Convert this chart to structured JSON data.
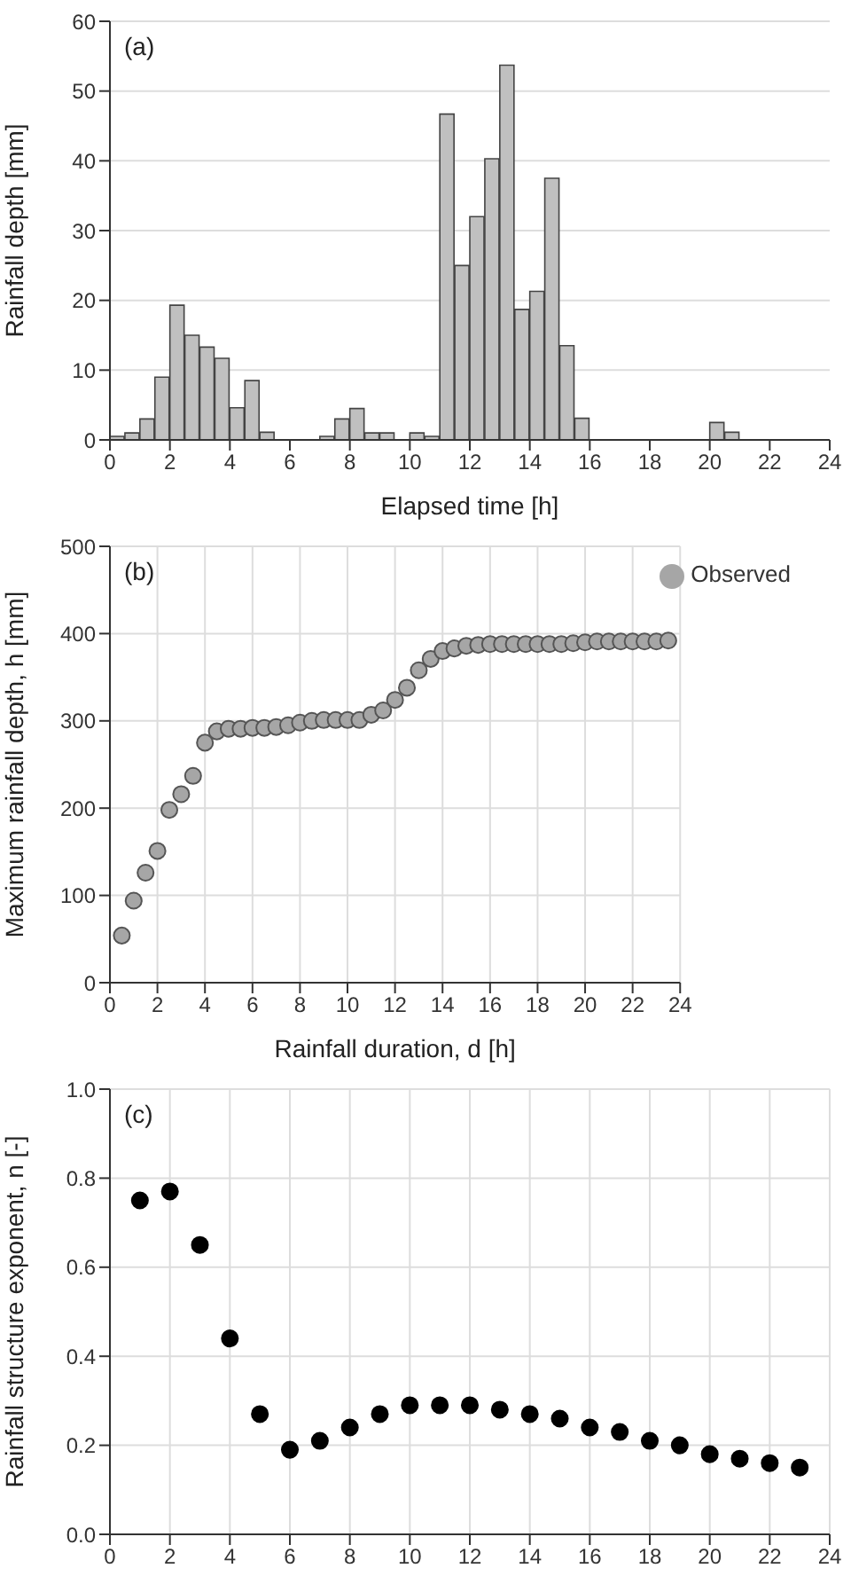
{
  "chart_data": [
    {
      "type": "histogram",
      "xlabel": "Elapsed time [h]",
      "ylabel": "Rainfall depth [mm]",
      "annotations": [
        "(a)"
      ],
      "bins": [
        0,
        0.5,
        1,
        1.5,
        2,
        2.5,
        3,
        3.5,
        4,
        4.5,
        5,
        5.5,
        6,
        6.5,
        7,
        7.5,
        8,
        8.5,
        9,
        9.5,
        10,
        10.5,
        11,
        11.5,
        12,
        12.5,
        13,
        13.5,
        14,
        14.5,
        15,
        15.5,
        16,
        16.5,
        17,
        17.5,
        18,
        18.5,
        19,
        19.5,
        20,
        20.5,
        21,
        21.5,
        22,
        22.5,
        23,
        23.5,
        24
      ],
      "values": [
        0.5,
        1,
        3,
        9,
        19.3,
        15,
        13.3,
        11.7,
        4.6,
        8.5,
        1.1,
        0,
        0,
        0,
        0.5,
        3,
        4.5,
        1,
        1,
        0,
        1,
        0.5,
        46.7,
        25,
        32,
        40.3,
        53.7,
        18.7,
        21.3,
        37.5,
        13.5,
        3.1,
        0,
        0,
        0,
        0,
        0,
        0,
        0,
        0,
        2.5,
        1.1,
        0,
        0,
        0,
        0,
        0,
        0
      ],
      "color": "#c0c0c0",
      "xlim": [
        0,
        24
      ],
      "xticks": [
        0,
        2,
        4,
        6,
        8,
        10,
        12,
        14,
        16,
        18,
        20,
        22,
        24
      ],
      "ylim": [
        0,
        60
      ],
      "yticks": [
        0,
        10,
        20,
        30,
        40,
        50,
        60
      ],
      "grid": "y"
    },
    {
      "type": "scatter",
      "xlabel": "Rainfall duration, d [h]",
      "ylabel": "Maximum  rainfall depth, h [mm]",
      "annotations": [
        "(b)"
      ],
      "x": [
        0.5,
        1,
        1.5,
        2,
        2.5,
        3,
        3.5,
        4,
        4.5,
        5,
        5.5,
        6,
        6.5,
        7,
        7.5,
        8,
        8.5,
        9,
        9.5,
        10,
        10.5,
        11,
        11.5,
        12,
        12.5,
        13,
        13.5,
        14,
        14.5,
        15,
        15.5,
        16,
        16.5,
        17,
        17.5,
        18,
        18.5,
        19,
        19.5,
        20,
        20.5,
        21,
        21.5,
        22,
        22.5,
        23,
        23.5
      ],
      "series": [
        {
          "name": "Observed",
          "color": "#a6a6a6",
          "values": [
            54,
            94,
            126,
            151,
            198,
            216,
            237,
            275,
            288,
            291,
            291,
            292,
            292,
            293,
            295,
            298,
            300,
            301,
            301,
            301,
            301,
            307,
            312,
            324,
            338,
            358,
            371,
            380,
            383,
            386,
            387,
            388,
            388,
            388,
            388,
            388,
            388,
            388,
            389,
            390,
            391,
            391,
            391,
            391,
            391,
            391,
            392
          ]
        }
      ],
      "xlim": [
        0,
        24
      ],
      "xticks": [
        0,
        2,
        4,
        6,
        8,
        10,
        12,
        14,
        16,
        18,
        20,
        22,
        24
      ],
      "ylim": [
        0,
        500
      ],
      "yticks": [
        0,
        100,
        200,
        300,
        400,
        500
      ],
      "grid": true,
      "legend": "top right",
      "marker": "circle"
    },
    {
      "type": "scatter",
      "ylabel": "Rainfall structure exponent, n [-]",
      "annotations": [
        "(c)"
      ],
      "x": [
        1,
        2,
        3,
        4,
        5,
        6,
        7,
        8,
        9,
        10,
        11,
        12,
        13,
        14,
        15,
        16,
        17,
        18,
        19,
        20,
        21,
        22,
        23
      ],
      "series": [
        {
          "color": "#000000",
          "values": [
            0.75,
            0.77,
            0.65,
            0.44,
            0.27,
            0.19,
            0.21,
            0.24,
            0.27,
            0.29,
            0.29,
            0.29,
            0.28,
            0.27,
            0.26,
            0.24,
            0.23,
            0.21,
            0.2,
            0.18,
            0.17,
            0.16,
            0.15
          ]
        }
      ],
      "xlim": [
        0,
        24
      ],
      "xticks": [
        0,
        2,
        4,
        6,
        8,
        10,
        12,
        14,
        16,
        18,
        20,
        22,
        24
      ],
      "ylim": [
        0,
        1
      ],
      "yticks": [
        {
          "value": 0,
          "label": "0.0"
        },
        0.2,
        0.4,
        0.6,
        0.8,
        {
          "value": 1,
          "label": "1.0"
        }
      ],
      "grid": true,
      "marker": "circle"
    }
  ]
}
